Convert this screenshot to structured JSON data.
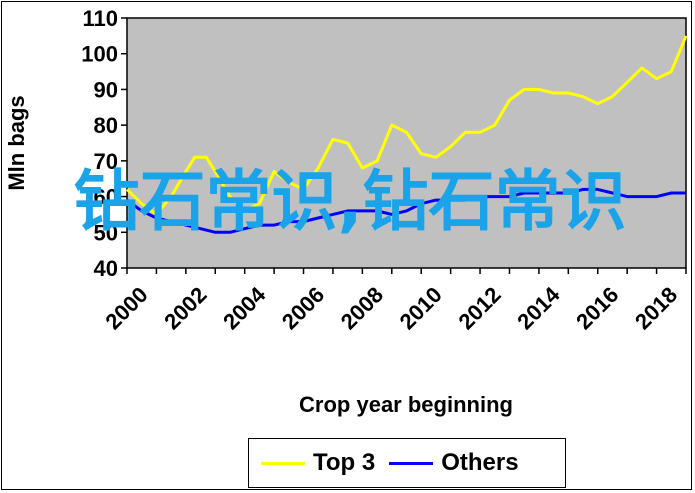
{
  "chart_data": {
    "type": "line",
    "title": "",
    "xlabel": "Crop year beginning",
    "ylabel": "Mln bags",
    "xlim": [
      2000,
      2019
    ],
    "ylim": [
      40,
      110
    ],
    "x_ticks": [
      2000,
      2002,
      2004,
      2006,
      2008,
      2010,
      2012,
      2014,
      2016,
      2018
    ],
    "y_ticks": [
      40,
      50,
      60,
      70,
      80,
      90,
      100,
      110
    ],
    "grid": false,
    "plot_background": "#c0c0c0",
    "legend_position": "bottom",
    "series": [
      {
        "name": "Top 3",
        "color": "#ffff00",
        "x": [
          2000,
          2000.5,
          2001,
          2001.5,
          2002,
          2002.3,
          2002.7,
          2003,
          2003.5,
          2004,
          2004.5,
          2005,
          2005.5,
          2006,
          2006.5,
          2007,
          2007.5,
          2008,
          2008.5,
          2009,
          2009.5,
          2010,
          2010.5,
          2011,
          2011.5,
          2012,
          2012.5,
          2013,
          2013.5,
          2014,
          2014.5,
          2015,
          2015.5,
          2016,
          2016.5,
          2017,
          2017.5,
          2018,
          2018.5,
          2019
        ],
        "values": [
          62,
          58,
          55,
          60,
          67,
          71,
          71,
          67,
          60,
          56,
          58,
          67,
          64,
          62,
          68,
          76,
          75,
          68,
          70,
          80,
          78,
          72,
          71,
          74,
          78,
          78,
          80,
          87,
          90,
          90,
          89,
          89,
          88,
          86,
          88,
          92,
          96,
          93,
          95,
          105
        ]
      },
      {
        "name": "Others",
        "color": "#0000ff",
        "x": [
          2000,
          2000.5,
          2001,
          2001.5,
          2002,
          2002.5,
          2003,
          2003.5,
          2004,
          2004.5,
          2005,
          2005.5,
          2006,
          2006.5,
          2007,
          2007.5,
          2008,
          2008.5,
          2009,
          2009.5,
          2010,
          2010.5,
          2011,
          2011.5,
          2012,
          2012.5,
          2013,
          2013.5,
          2014,
          2014.5,
          2015,
          2015.5,
          2016,
          2016.5,
          2017,
          2017.5,
          2018,
          2018.5,
          2019
        ],
        "values": [
          59,
          56,
          54,
          53,
          52,
          51,
          50,
          50,
          51,
          52,
          52,
          53,
          53,
          54,
          55,
          56,
          56,
          56,
          55,
          56,
          58,
          59,
          59,
          59,
          60,
          60,
          60,
          61,
          61,
          61,
          61,
          62,
          62,
          61,
          60,
          60,
          60,
          61,
          61
        ]
      }
    ]
  },
  "legend": {
    "items": [
      {
        "label": "Top 3",
        "color": "#ffff00"
      },
      {
        "label": "Others",
        "color": "#0000ff"
      }
    ]
  },
  "overlay": {
    "text": "钻石常识,钻石常识",
    "color": "#1aa3e8"
  }
}
